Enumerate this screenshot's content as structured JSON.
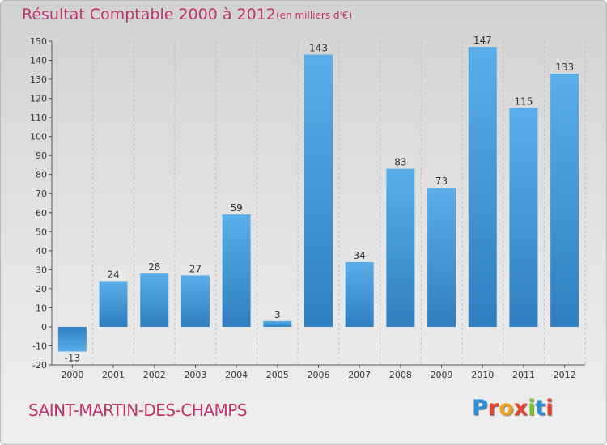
{
  "header": {
    "title": "Résultat Comptable 2000 à 2012",
    "subtitle": "(en milliers d'€)"
  },
  "footer": {
    "commune": "SAINT-MARTIN-DES-CHAMPS",
    "logo_text": "Proxiti",
    "logo_colors": [
      "#2a8fd6",
      "#e8442d",
      "#f0a51d",
      "#e8442d",
      "#7bbf2a",
      "#2a8fd6",
      "#e8442d"
    ]
  },
  "colors": {
    "bar_light": "#5aaee9",
    "bar_dark": "#2f7fc0",
    "text": "#333333",
    "title": "#c0336a"
  },
  "chart_data": {
    "type": "bar",
    "categories": [
      "2000",
      "2001",
      "2002",
      "2003",
      "2004",
      "2005",
      "2006",
      "2007",
      "2008",
      "2009",
      "2010",
      "2011",
      "2012"
    ],
    "values": [
      -13,
      24,
      28,
      27,
      59,
      3,
      143,
      34,
      83,
      73,
      147,
      115,
      133
    ],
    "data_labels": [
      "-13",
      "24",
      "28",
      "27",
      "59",
      "3",
      "143",
      "34",
      "83",
      "73",
      "147",
      "115",
      "133"
    ],
    "ylim": [
      -20,
      150
    ],
    "yticks": [
      -20,
      -10,
      0,
      10,
      20,
      30,
      40,
      50,
      60,
      70,
      80,
      90,
      100,
      110,
      120,
      130,
      140,
      150
    ],
    "grid": true,
    "grid_axis": "x",
    "legend": "none"
  }
}
